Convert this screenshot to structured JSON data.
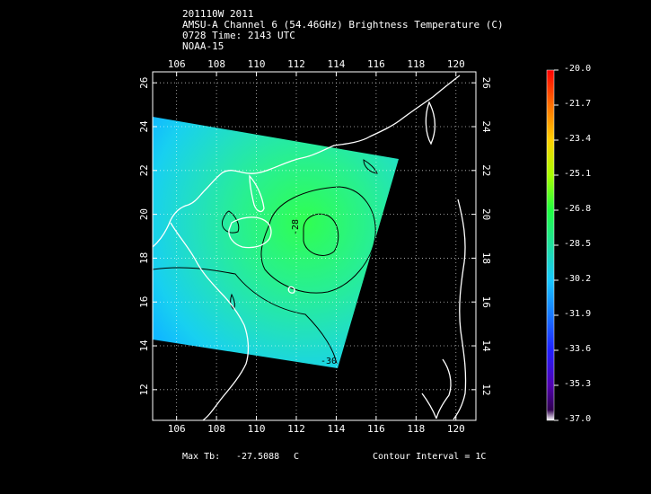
{
  "header": {
    "line1": "201110W 2011",
    "line2": "AMSU-A Channel 6 (54.46GHz) Brightness Temperature (C)",
    "line3": "0728 Time: 2143 UTC",
    "line4": "NOAA-15"
  },
  "map": {
    "lon_ticks": [
      "106",
      "108",
      "110",
      "112",
      "114",
      "116",
      "118",
      "120"
    ],
    "lat_ticks": [
      "12",
      "14",
      "16",
      "18",
      "20",
      "22",
      "24",
      "26"
    ],
    "contour_labels": [
      "-28",
      "-30"
    ],
    "lon_range": [
      104.8,
      121.0
    ],
    "lat_range": [
      10.6,
      26.5
    ],
    "colors": {
      "background": "#000000",
      "coastline": "#ffffff",
      "grid": "#ffffff",
      "contour": "#000000"
    }
  },
  "colorbar": {
    "labels": [
      "-20.0",
      "-21.7",
      "-23.4",
      "-25.1",
      "-26.8",
      "-28.5",
      "-30.2",
      "-31.9",
      "-33.6",
      "-35.3",
      "-37.0"
    ],
    "colors": [
      "#ff0000",
      "#ff7000",
      "#ffd000",
      "#a8ff00",
      "#20ff40",
      "#20e0a0",
      "#18c8ff",
      "#1878ff",
      "#2020ff",
      "#5000b0",
      "#300050",
      "#ffffff"
    ]
  },
  "footer": {
    "max_label": "Max Tb:",
    "max_value": "-27.5088",
    "max_unit": "C",
    "contour_interval": "Contour Interval = 1C"
  }
}
